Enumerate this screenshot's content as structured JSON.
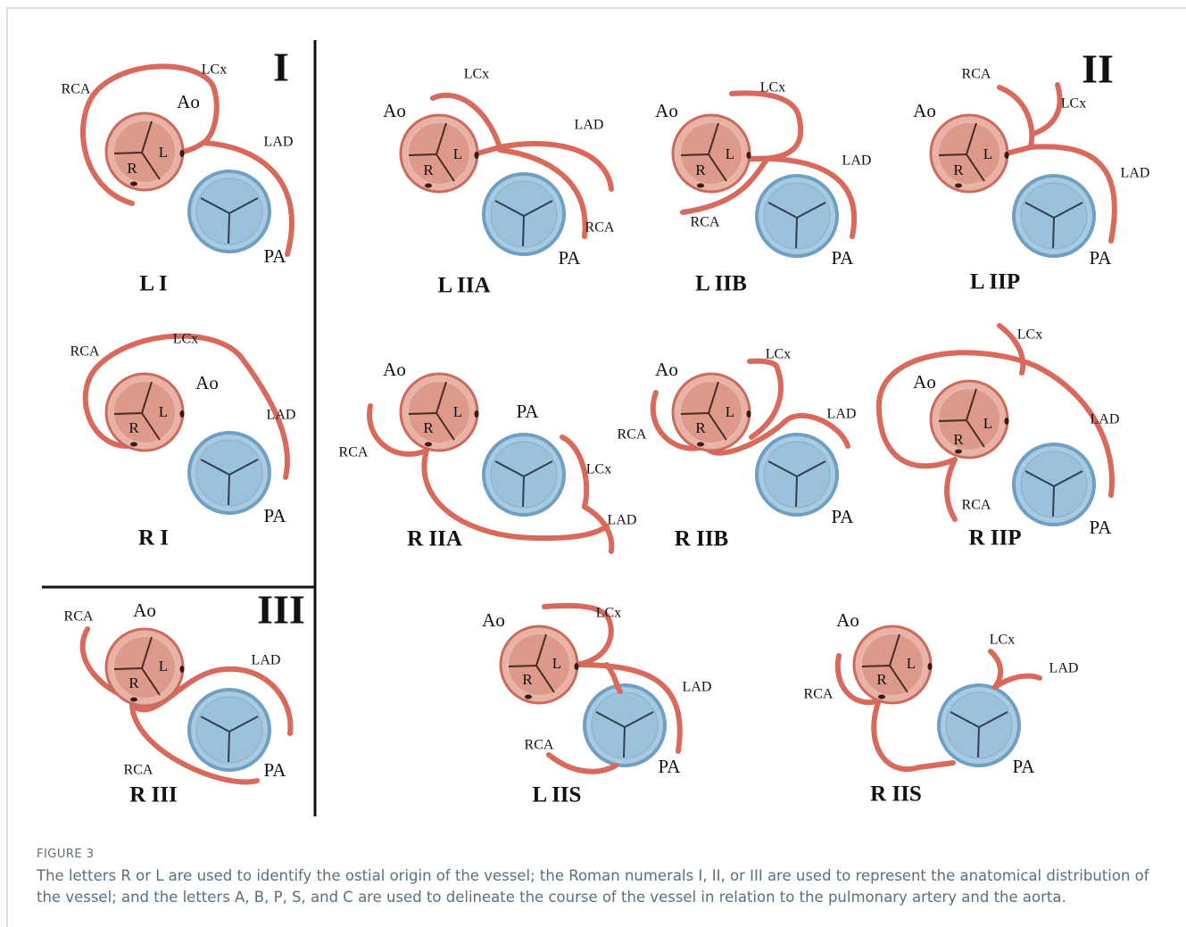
{
  "sections": [
    "I",
    "II",
    "III"
  ],
  "panels": [
    {
      "title": "L I",
      "labels": [
        "RCA",
        "LCx",
        "Ao",
        "L",
        "R",
        "LAD",
        "PA"
      ]
    },
    {
      "title": "R I",
      "labels": [
        "RCA",
        "LCx",
        "Ao",
        "L",
        "R",
        "LAD",
        "PA"
      ]
    },
    {
      "title": "R III",
      "labels": [
        "RCA",
        "Ao",
        "L",
        "R",
        "LAD",
        "RCA",
        "PA"
      ]
    },
    {
      "title": "L IIA",
      "labels": [
        "Ao",
        "LCx",
        "L",
        "R",
        "LAD",
        "RCA",
        "PA"
      ]
    },
    {
      "title": "L IIB",
      "labels": [
        "Ao",
        "LCx",
        "L",
        "R",
        "LAD",
        "RCA",
        "PA"
      ]
    },
    {
      "title": "L IIP",
      "labels": [
        "Ao",
        "RCA",
        "LCx",
        "L",
        "R",
        "LAD",
        "PA"
      ]
    },
    {
      "title": "R IIA",
      "labels": [
        "Ao",
        "PA",
        "L",
        "R",
        "RCA",
        "LCx",
        "LAD"
      ]
    },
    {
      "title": "R IIB",
      "labels": [
        "Ao",
        "LCx",
        "L",
        "R",
        "RCA",
        "LAD",
        "PA"
      ]
    },
    {
      "title": "R IIP",
      "labels": [
        "Ao",
        "LCx",
        "LAD",
        "L",
        "R",
        "RCA",
        "PA"
      ]
    },
    {
      "title": "L IIS",
      "labels": [
        "Ao",
        "LCx",
        "L",
        "R",
        "LAD",
        "RCA",
        "PA"
      ]
    },
    {
      "title": "R IIS",
      "labels": [
        "Ao",
        "LCx",
        "LAD",
        "L",
        "R",
        "RCA",
        "PA"
      ]
    }
  ],
  "caption": {
    "label": "FIGURE 3",
    "text": "The letters R or L are used to identify the ostial origin of the vessel; the Roman numerals I, II, or III are used to represent the anatomical distribution of the vessel; and the letters A, B, P, S, and C are used to delineate the course of the vessel in relation to the pulmonary artery and the aorta."
  }
}
